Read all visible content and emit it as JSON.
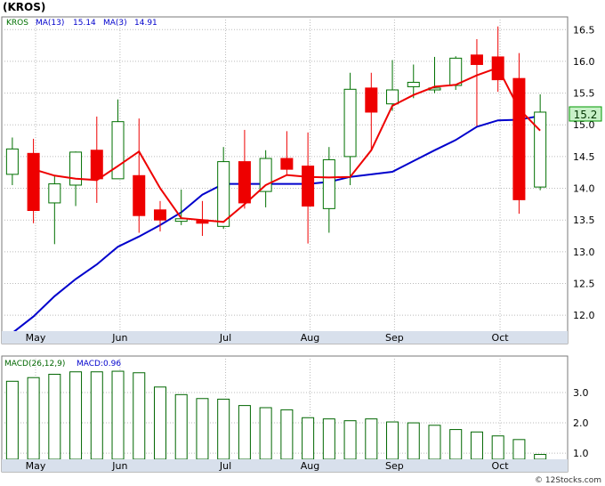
{
  "title": "(KROS)",
  "footer": "© 12Stocks.com",
  "legend": {
    "ticker": "KROS",
    "ma13_label": "MA(13)",
    "ma13_value": "15.14",
    "ma3_label": "MA(3)",
    "ma3_value": "14.91"
  },
  "macd_legend": {
    "label": "MACD(26,12,9)",
    "value_label": "MACD:0.96"
  },
  "price_tag": "15.2",
  "colors": {
    "up": "#007000",
    "down": "#ee0000",
    "ma13": "#0000cc",
    "ma3": "#ee0000",
    "macd": "#006600",
    "grid": "#bbbbbb",
    "axis_band": "#d8e0ec",
    "price_tag_bg": "#c8f0c8"
  },
  "chart_data": [
    {
      "type": "candlestick",
      "ylim": [
        11.75,
        16.7
      ],
      "yticks": [
        12.0,
        12.5,
        13.0,
        13.5,
        14.0,
        14.5,
        15.0,
        15.5,
        16.0,
        16.5
      ],
      "ytick_labels": [
        "12.0",
        "12.5",
        "13.0",
        "13.5",
        "14.0",
        "14.5",
        "15.0",
        "15.5",
        "16.0",
        "16.5"
      ],
      "xlim": [
        -0.5,
        26.3
      ],
      "xticks": [
        {
          "pos": 1.1,
          "label": "May"
        },
        {
          "pos": 5.1,
          "label": "Jun"
        },
        {
          "pos": 10.1,
          "label": "Jul"
        },
        {
          "pos": 14.1,
          "label": "Aug"
        },
        {
          "pos": 18.1,
          "label": "Sep"
        },
        {
          "pos": 23.1,
          "label": "Oct"
        }
      ],
      "grid": true,
      "candles": [
        {
          "o": 14.22,
          "h": 14.8,
          "l": 14.05,
          "c": 14.62
        },
        {
          "o": 14.55,
          "h": 14.78,
          "l": 13.45,
          "c": 13.65
        },
        {
          "o": 13.77,
          "h": 14.2,
          "l": 13.12,
          "c": 14.07
        },
        {
          "o": 14.05,
          "h": 14.58,
          "l": 13.72,
          "c": 14.57
        },
        {
          "o": 14.6,
          "h": 15.13,
          "l": 13.77,
          "c": 14.15
        },
        {
          "o": 14.15,
          "h": 15.4,
          "l": 14.15,
          "c": 15.05
        },
        {
          "o": 14.2,
          "h": 15.1,
          "l": 13.3,
          "c": 13.57
        },
        {
          "o": 13.66,
          "h": 13.8,
          "l": 13.32,
          "c": 13.5
        },
        {
          "o": 13.48,
          "h": 13.98,
          "l": 13.42,
          "c": 13.52
        },
        {
          "o": 13.5,
          "h": 13.8,
          "l": 13.25,
          "c": 13.45
        },
        {
          "o": 13.4,
          "h": 14.65,
          "l": 13.36,
          "c": 14.42
        },
        {
          "o": 14.42,
          "h": 14.92,
          "l": 13.68,
          "c": 13.77
        },
        {
          "o": 13.95,
          "h": 14.6,
          "l": 13.7,
          "c": 14.47
        },
        {
          "o": 14.47,
          "h": 14.9,
          "l": 14.22,
          "c": 14.3
        },
        {
          "o": 14.35,
          "h": 14.88,
          "l": 13.13,
          "c": 13.72
        },
        {
          "o": 13.68,
          "h": 14.65,
          "l": 13.3,
          "c": 14.45
        },
        {
          "o": 14.5,
          "h": 15.82,
          "l": 14.05,
          "c": 15.56
        },
        {
          "o": 15.58,
          "h": 15.82,
          "l": 14.6,
          "c": 15.2
        },
        {
          "o": 15.33,
          "h": 16.02,
          "l": 15.22,
          "c": 15.55
        },
        {
          "o": 15.6,
          "h": 15.95,
          "l": 15.42,
          "c": 15.67
        },
        {
          "o": 15.55,
          "h": 16.07,
          "l": 15.5,
          "c": 15.58
        },
        {
          "o": 15.62,
          "h": 16.08,
          "l": 15.55,
          "c": 16.05
        },
        {
          "o": 16.1,
          "h": 16.35,
          "l": 14.98,
          "c": 15.95
        },
        {
          "o": 16.07,
          "h": 16.55,
          "l": 15.52,
          "c": 15.71
        },
        {
          "o": 15.73,
          "h": 16.13,
          "l": 13.6,
          "c": 13.82
        },
        {
          "o": 14.02,
          "h": 15.48,
          "l": 13.97,
          "c": 15.2
        }
      ],
      "ma3": [
        null,
        14.3,
        14.2,
        14.15,
        14.13,
        14.35,
        14.58,
        14.0,
        13.53,
        13.5,
        13.47,
        13.75,
        14.05,
        14.21,
        14.18,
        14.17,
        14.18,
        14.6,
        15.3,
        15.47,
        15.6,
        15.63,
        15.78,
        15.9,
        15.25,
        14.91
      ],
      "ma13": [
        11.72,
        11.98,
        12.3,
        12.57,
        12.8,
        13.08,
        13.24,
        13.42,
        13.62,
        13.9,
        14.07,
        14.07,
        14.07,
        14.07,
        14.07,
        14.1,
        14.18,
        14.22,
        14.26,
        14.43,
        14.6,
        14.76,
        14.97,
        15.07,
        15.08,
        15.14
      ]
    },
    {
      "type": "bar",
      "name": "MACD(26,12,9)",
      "ylim": [
        0.8,
        4.2
      ],
      "yticks": [
        1.0,
        2.0,
        3.0
      ],
      "ytick_labels": [
        "1.0",
        "2.0",
        "3.0"
      ],
      "values": [
        3.37,
        3.49,
        3.6,
        3.68,
        3.68,
        3.7,
        3.65,
        3.18,
        2.93,
        2.8,
        2.78,
        2.57,
        2.5,
        2.43,
        2.17,
        2.13,
        2.07,
        2.13,
        2.03,
        2.0,
        1.92,
        1.78,
        1.7,
        1.57,
        1.45,
        0.96
      ]
    }
  ]
}
